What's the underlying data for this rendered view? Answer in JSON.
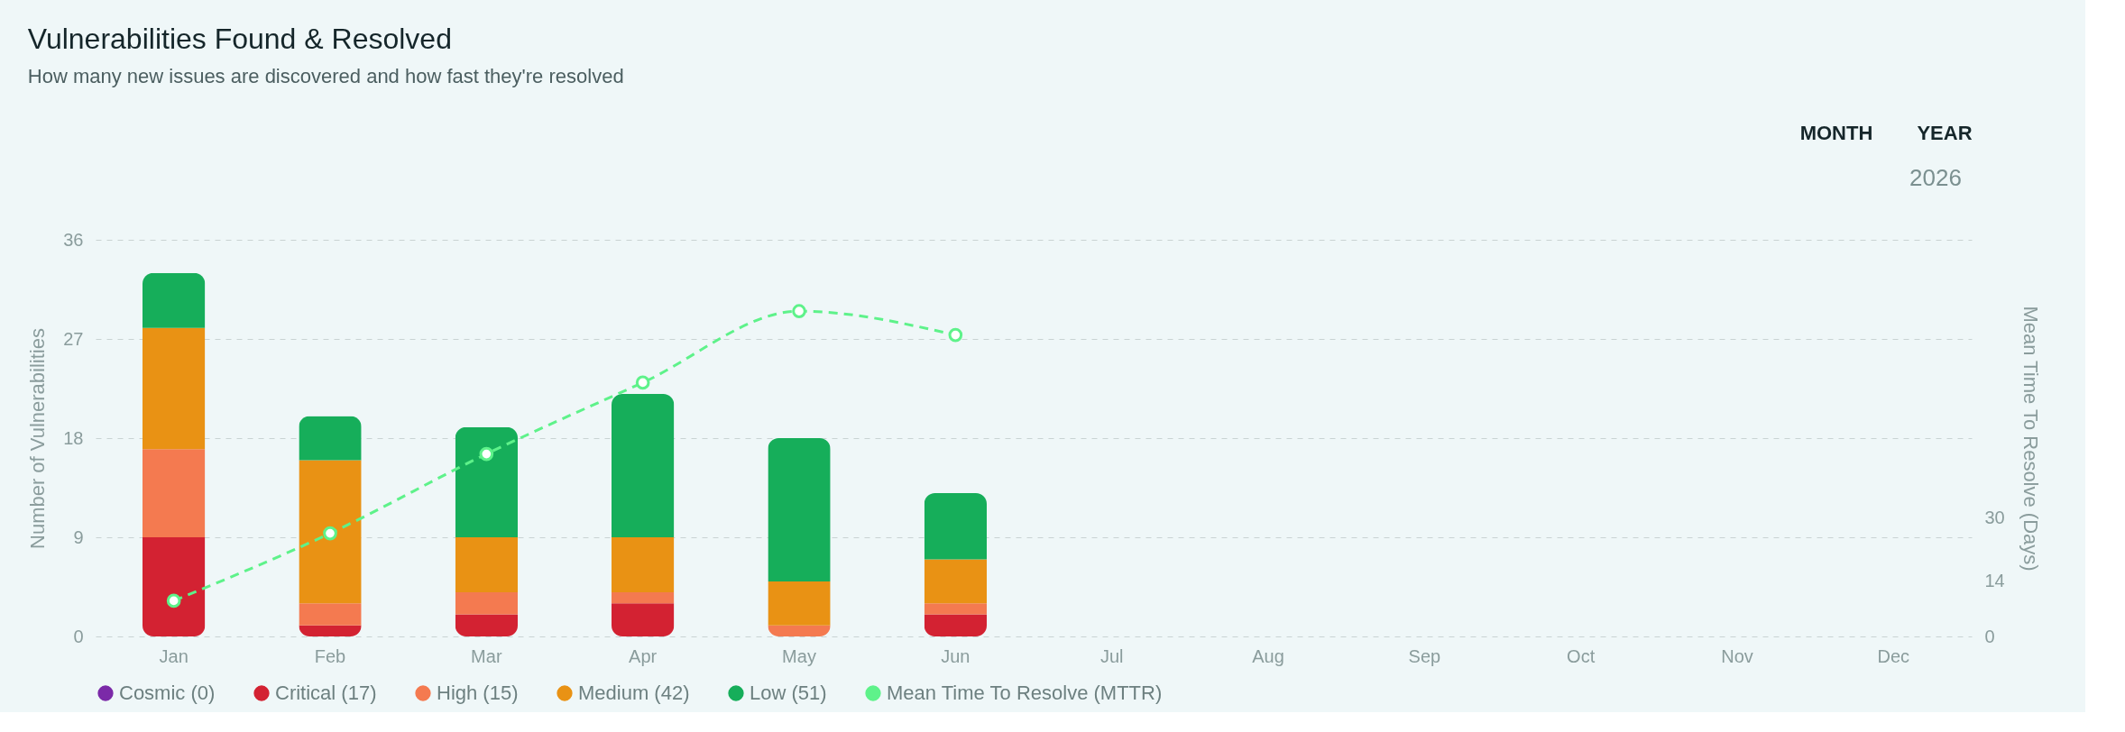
{
  "chart_data": {
    "type": "bar",
    "title": "Vulnerabilities Found & Resolved",
    "subtitle": "How many new issues are discovered and how fast they're resolved",
    "ylabel": "Number of Vulnerabilities",
    "y2label": "Mean Time To Resolve (Days)",
    "categories": [
      "Jan",
      "Feb",
      "Mar",
      "Apr",
      "May",
      "Jun",
      "Jul",
      "Aug",
      "Sep",
      "Oct",
      "Nov",
      "Dec"
    ],
    "stacked": true,
    "series": [
      {
        "name": "Cosmic (0)",
        "color": "#7b2aa8",
        "values": [
          0,
          0,
          0,
          0,
          0,
          0,
          null,
          null,
          null,
          null,
          null,
          null
        ]
      },
      {
        "name": "Critical (17)",
        "color": "#d32232",
        "values": [
          9,
          1,
          2,
          3,
          0,
          2,
          null,
          null,
          null,
          null,
          null,
          null
        ]
      },
      {
        "name": "High (15)",
        "color": "#f47a50",
        "values": [
          8,
          2,
          2,
          1,
          1,
          1,
          null,
          null,
          null,
          null,
          null,
          null
        ]
      },
      {
        "name": "Medium (42)",
        "color": "#e99214",
        "values": [
          11,
          13,
          5,
          5,
          4,
          4,
          null,
          null,
          null,
          null,
          null,
          null
        ]
      },
      {
        "name": "Low (51)",
        "color": "#16ae5a",
        "values": [
          5,
          4,
          10,
          13,
          13,
          6,
          null,
          null,
          null,
          null,
          null,
          null
        ]
      },
      {
        "name": "Mean Time To Resolve (MTTR)",
        "type": "line",
        "axis": "y2",
        "color": "#5ef28a",
        "line_style": "dashed",
        "marker": "circle",
        "values": [
          9,
          26,
          46,
          64,
          82,
          76,
          null,
          null,
          null,
          null,
          null,
          null
        ]
      }
    ],
    "ylim": [
      0,
      36
    ],
    "yticks": [
      0,
      9,
      18,
      27,
      36
    ],
    "y2lim": [
      0,
      100
    ],
    "y2ticks": [
      0,
      14,
      30
    ],
    "grid": "y",
    "legend": "bottom",
    "annotations": [
      "MONTH",
      "YEAR",
      "2026"
    ]
  }
}
